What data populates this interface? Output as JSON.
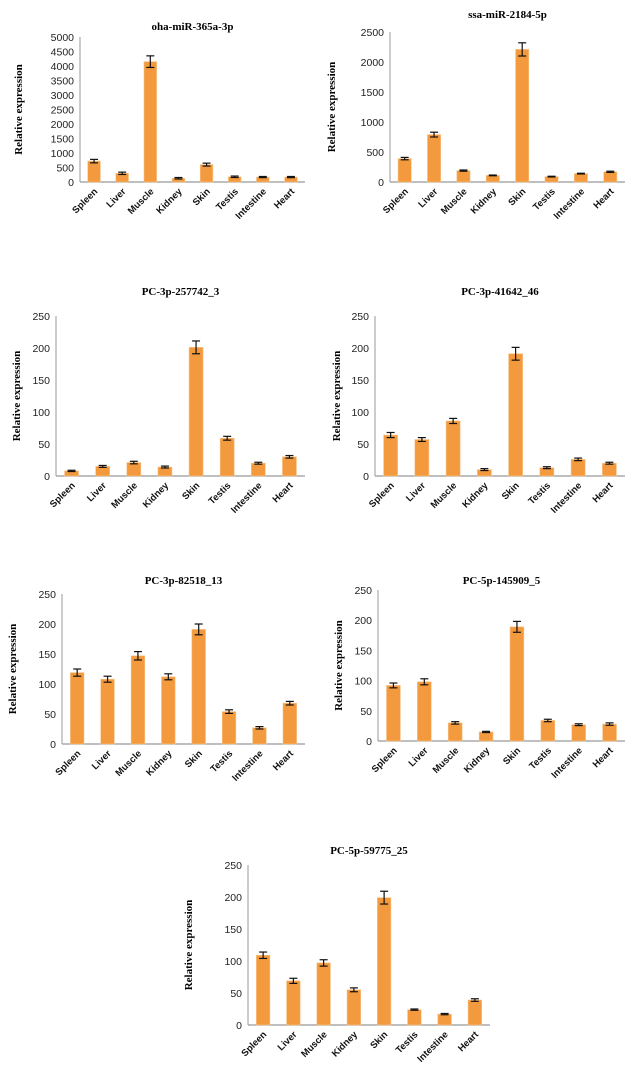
{
  "chart_data": [
    {
      "type": "bar",
      "title": "oha-miR-365a-3p",
      "ylabel": "Relative expression",
      "xlabel": "",
      "categories": [
        "Spleen",
        "Liver",
        "Muscle",
        "Kidney",
        "Skin",
        "Testis",
        "Intestine",
        "Heart"
      ],
      "values": [
        720,
        300,
        4150,
        130,
        600,
        180,
        170,
        170
      ],
      "errors": [
        60,
        40,
        200,
        25,
        50,
        25,
        20,
        20
      ],
      "ylim": [
        0,
        5000
      ],
      "yticks": [
        0,
        500,
        1000,
        1500,
        2000,
        2500,
        3000,
        3500,
        4000,
        4500,
        5000
      ],
      "grid": false,
      "color": "#F39A3E"
    },
    {
      "type": "bar",
      "title": "ssa-miR-2184-5p",
      "ylabel": "Relative expression",
      "xlabel": "",
      "categories": [
        "Spleen",
        "Liver",
        "Muscle",
        "Kidney",
        "Skin",
        "Testis",
        "Intestine",
        "Heart"
      ],
      "values": [
        390,
        790,
        190,
        110,
        2210,
        90,
        140,
        170
      ],
      "errors": [
        20,
        40,
        10,
        6,
        110,
        6,
        6,
        10
      ],
      "ylim": [
        0,
        2500
      ],
      "yticks": [
        0,
        500,
        1000,
        1500,
        2000,
        2500
      ],
      "grid": false,
      "color": "#F39A3E"
    },
    {
      "type": "bar",
      "title": "PC-3p-257742_3",
      "ylabel": "Relative expression",
      "xlabel": "",
      "categories": [
        "Spleen",
        "Liver",
        "Muscle",
        "Kidney",
        "Skin",
        "Testis",
        "Intestine",
        "Heart"
      ],
      "values": [
        8,
        15,
        21,
        14,
        201,
        59,
        20,
        30
      ],
      "errors": [
        1,
        1.5,
        2,
        1.5,
        10,
        3,
        1.5,
        2
      ],
      "ylim": [
        0,
        250
      ],
      "yticks": [
        0,
        50,
        100,
        150,
        200,
        250
      ],
      "grid": false,
      "color": "#F39A3E"
    },
    {
      "type": "bar",
      "title": "PC-3p-41642_46",
      "ylabel": "Relative expression",
      "xlabel": "",
      "categories": [
        "Spleen",
        "Liver",
        "Muscle",
        "Kidney",
        "Skin",
        "Testis",
        "Intestine",
        "Heart"
      ],
      "values": [
        64,
        57,
        86,
        10,
        191,
        13,
        26,
        20
      ],
      "errors": [
        4,
        3,
        4,
        1.5,
        10,
        1.5,
        2,
        1.5
      ],
      "ylim": [
        0,
        250
      ],
      "yticks": [
        0,
        50,
        100,
        150,
        200,
        250
      ],
      "grid": false,
      "color": "#F39A3E"
    },
    {
      "type": "bar",
      "title": "PC-3p-82518_13",
      "ylabel": "Relative expression",
      "xlabel": "",
      "categories": [
        "Spleen",
        "Liver",
        "Muscle",
        "Kidney",
        "Skin",
        "Testis",
        "Intestine",
        "Heart"
      ],
      "values": [
        119,
        108,
        147,
        112,
        191,
        54,
        27,
        68
      ],
      "errors": [
        6,
        5,
        7,
        5,
        9,
        3,
        2,
        3
      ],
      "ylim": [
        0,
        250
      ],
      "yticks": [
        0,
        50,
        100,
        150,
        200,
        250
      ],
      "grid": false,
      "color": "#F39A3E"
    },
    {
      "type": "bar",
      "title": "PC-5p-145909_5",
      "ylabel": "Relative expression",
      "xlabel": "",
      "categories": [
        "Spleen",
        "Liver",
        "Muscle",
        "Kidney",
        "Skin",
        "Testis",
        "Intestine",
        "Heart"
      ],
      "values": [
        92,
        98,
        30,
        15,
        189,
        34,
        27,
        28
      ],
      "errors": [
        4,
        5,
        2,
        1,
        9,
        2,
        1.5,
        2
      ],
      "ylim": [
        0,
        250
      ],
      "yticks": [
        0,
        50,
        100,
        150,
        200,
        250
      ],
      "grid": false,
      "color": "#F39A3E"
    },
    {
      "type": "bar",
      "title": "PC-5p-59775_25",
      "ylabel": "Relative expression",
      "xlabel": "",
      "categories": [
        "Spleen",
        "Liver",
        "Muscle",
        "Kidney",
        "Skin",
        "Testis",
        "Intestine",
        "Heart"
      ],
      "values": [
        109,
        69,
        97,
        55,
        199,
        24,
        17,
        39
      ],
      "errors": [
        5,
        4,
        5,
        3,
        10,
        1,
        1,
        2
      ],
      "ylim": [
        0,
        250
      ],
      "yticks": [
        0,
        50,
        100,
        150,
        200,
        250
      ],
      "grid": false,
      "color": "#F39A3E"
    }
  ]
}
